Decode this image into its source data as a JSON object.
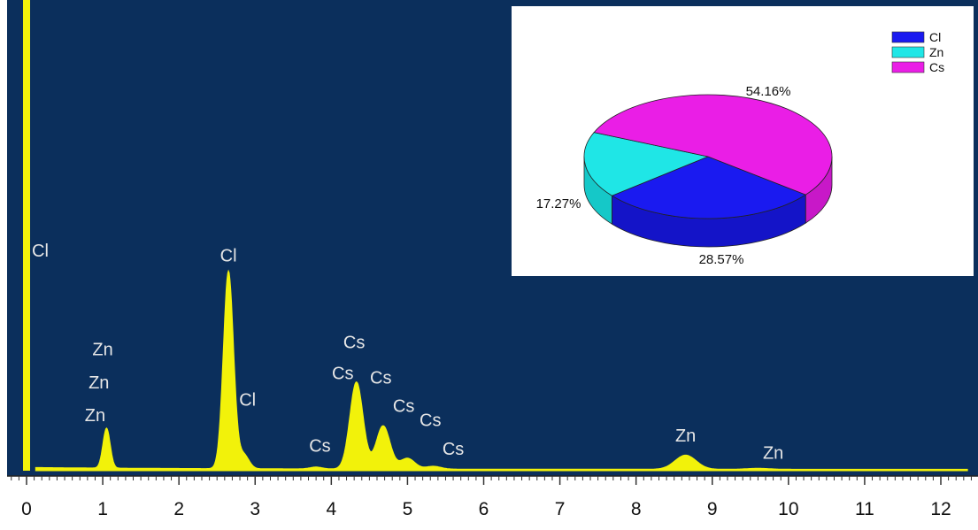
{
  "colors": {
    "plot_bg": "#0b2f5c",
    "trace": "#f2f20a",
    "label": "#e6e6e6",
    "pie_cl": "#1a1af0",
    "pie_zn": "#1fe6e6",
    "pie_cs": "#ea1ee6"
  },
  "chart_data": [
    {
      "type": "line",
      "title": "",
      "xlabel": "",
      "ylabel": "",
      "xlim": [
        -0.2,
        12.5
      ],
      "x_ticks": [
        "0",
        "1",
        "2",
        "3",
        "4",
        "5",
        "6",
        "7",
        "8",
        "9",
        "10",
        "11",
        "12"
      ],
      "grid": false,
      "peaks": [
        {
          "label": "Cl",
          "x": 2.65,
          "height": 0.42
        },
        {
          "label": "Cl",
          "x": 2.85,
          "height": 0.03
        },
        {
          "label": "Zn",
          "x": 1.05,
          "height": 0.085
        },
        {
          "label": "Cs",
          "x": 4.33,
          "height": 0.185
        },
        {
          "label": "Cs",
          "x": 4.68,
          "height": 0.092
        },
        {
          "label": "Cs",
          "x": 5.0,
          "height": 0.023
        },
        {
          "label": "Cs",
          "x": 5.34,
          "height": 0.006
        },
        {
          "label": "Cs",
          "x": 3.8,
          "height": 0.004
        },
        {
          "label": "Zn",
          "x": 8.65,
          "height": 0.03
        },
        {
          "label": "Zn",
          "x": 9.6,
          "height": 0.002
        }
      ],
      "annotations": [
        {
          "text": "Cl",
          "x": 0.18,
          "y": 0.455
        },
        {
          "text": "Cl",
          "x": 2.65,
          "y": 0.445
        },
        {
          "text": "Zn",
          "x": 1.0,
          "y": 0.245
        },
        {
          "text": "Zn",
          "x": 0.95,
          "y": 0.175
        },
        {
          "text": "Zn",
          "x": 0.9,
          "y": 0.105
        },
        {
          "text": "Cs",
          "x": 4.3,
          "y": 0.26
        },
        {
          "text": "Cs",
          "x": 4.15,
          "y": 0.195
        },
        {
          "text": "Cs",
          "x": 4.65,
          "y": 0.185
        },
        {
          "text": "Cl",
          "x": 2.9,
          "y": 0.138
        },
        {
          "text": "Cs",
          "x": 4.95,
          "y": 0.125
        },
        {
          "text": "Cs",
          "x": 5.3,
          "y": 0.095
        },
        {
          "text": "Cs",
          "x": 5.6,
          "y": 0.034
        },
        {
          "text": "Cs",
          "x": 3.85,
          "y": 0.04
        },
        {
          "text": "Zn",
          "x": 8.65,
          "y": 0.062
        },
        {
          "text": "Zn",
          "x": 9.8,
          "y": 0.025
        }
      ]
    },
    {
      "type": "pie",
      "title": "",
      "categories": [
        "Cl",
        "Zn",
        "Cs"
      ],
      "values": [
        28.57,
        17.27,
        54.16
      ],
      "labels": [
        "28.57%",
        "17.27%",
        "54.16%"
      ],
      "legend": "top-right"
    }
  ]
}
